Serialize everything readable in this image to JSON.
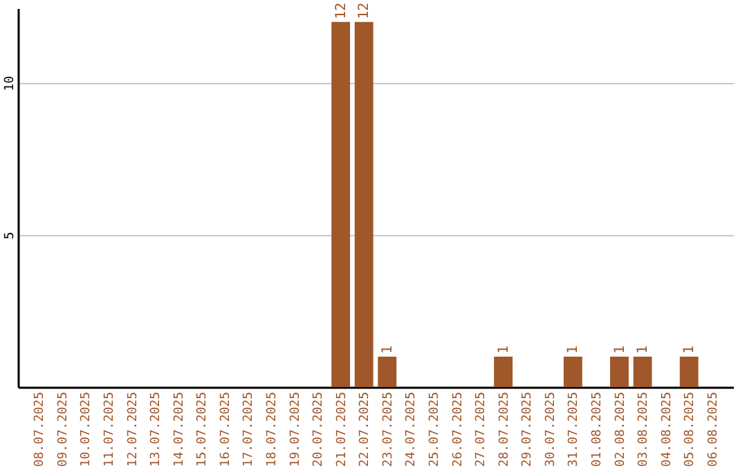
{
  "chart_data": {
    "type": "bar",
    "categories": [
      "08.07.2025",
      "09.07.2025",
      "10.07.2025",
      "11.07.2025",
      "12.07.2025",
      "13.07.2025",
      "14.07.2025",
      "15.07.2025",
      "16.07.2025",
      "17.07.2025",
      "18.07.2025",
      "19.07.2025",
      "20.07.2025",
      "21.07.2025",
      "22.07.2025",
      "23.07.2025",
      "24.07.2025",
      "25.07.2025",
      "26.07.2025",
      "27.07.2025",
      "28.07.2025",
      "29.07.2025",
      "30.07.2025",
      "31.07.2025",
      "01.08.2025",
      "02.08.2025",
      "03.08.2025",
      "04.08.2025",
      "05.08.2025",
      "06.08.2025"
    ],
    "values": [
      0,
      0,
      0,
      0,
      0,
      0,
      0,
      0,
      0,
      0,
      0,
      0,
      0,
      12,
      12,
      1,
      0,
      0,
      0,
      0,
      1,
      0,
      0,
      1,
      0,
      1,
      1,
      0,
      1,
      0
    ],
    "value_labels": [
      null,
      null,
      null,
      null,
      null,
      null,
      null,
      null,
      null,
      null,
      null,
      null,
      null,
      "12",
      "12",
      "1",
      null,
      null,
      null,
      null,
      "1",
      null,
      null,
      "1",
      null,
      "1",
      "1",
      null,
      "1",
      null
    ],
    "color": "#a0572a",
    "ylim": [
      0,
      12.45
    ],
    "yticks": [
      5,
      10
    ],
    "grid": "y"
  }
}
